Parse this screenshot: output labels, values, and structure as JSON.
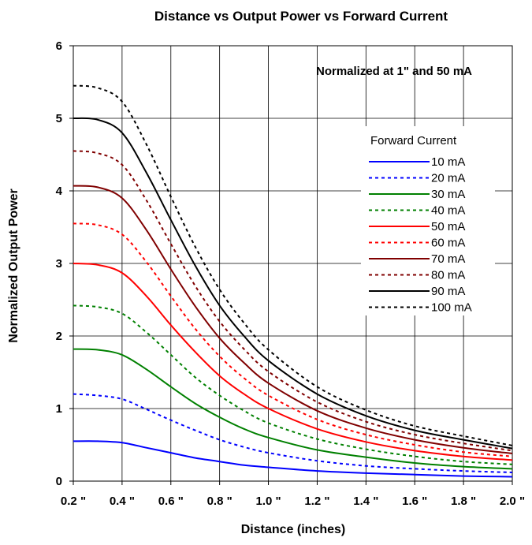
{
  "chart_data": {
    "type": "line",
    "title": "Distance vs Output Power vs Forward Current",
    "annotation": "Normalized at 1\" and 50 mA",
    "xlabel": "Distance (inches)",
    "ylabel": "Normalized Output Power",
    "xlim": [
      0.2,
      2.0
    ],
    "ylim": [
      0,
      6
    ],
    "grid": true,
    "x_ticks": [
      0.2,
      0.4,
      0.6,
      0.8,
      1.0,
      1.2,
      1.4,
      1.6,
      1.8,
      2.0
    ],
    "x_tick_labels": [
      "0.2 \"",
      "0.4 \"",
      "0.6 \"",
      "0.8 \"",
      "1.0 \"",
      "1.2 \"",
      "1.4 \"",
      "1.6 \"",
      "1.8 \"",
      "2.0 \""
    ],
    "y_ticks": [
      0,
      1,
      2,
      3,
      4,
      5,
      6
    ],
    "y_tick_labels": [
      "0",
      "1",
      "2",
      "3",
      "4",
      "5",
      "6"
    ],
    "legend_title": "Forward Current",
    "legend_position": "right",
    "x": [
      0.2,
      0.3,
      0.4,
      0.5,
      0.6,
      0.7,
      0.8,
      0.9,
      1.0,
      1.2,
      1.4,
      1.6,
      1.8,
      2.0
    ],
    "series": [
      {
        "name": "10 mA",
        "color": "#0000ff",
        "dash": "solid",
        "values": [
          0.55,
          0.55,
          0.53,
          0.46,
          0.39,
          0.32,
          0.27,
          0.22,
          0.19,
          0.14,
          0.11,
          0.09,
          0.07,
          0.06
        ]
      },
      {
        "name": "20 mA",
        "color": "#0000ff",
        "dash": "dashed",
        "values": [
          1.2,
          1.18,
          1.13,
          0.99,
          0.84,
          0.7,
          0.57,
          0.47,
          0.39,
          0.28,
          0.21,
          0.17,
          0.14,
          0.12
        ]
      },
      {
        "name": "30 mA",
        "color": "#008000",
        "dash": "solid",
        "values": [
          1.82,
          1.81,
          1.74,
          1.54,
          1.3,
          1.07,
          0.88,
          0.72,
          0.6,
          0.43,
          0.33,
          0.25,
          0.2,
          0.17
        ]
      },
      {
        "name": "40 mA",
        "color": "#008000",
        "dash": "dashed",
        "values": [
          2.42,
          2.4,
          2.31,
          2.05,
          1.74,
          1.43,
          1.18,
          0.97,
          0.8,
          0.58,
          0.44,
          0.34,
          0.27,
          0.23
        ]
      },
      {
        "name": "50 mA",
        "color": "#ff0000",
        "dash": "solid",
        "values": [
          3.0,
          2.98,
          2.87,
          2.55,
          2.15,
          1.78,
          1.45,
          1.2,
          1.0,
          0.72,
          0.54,
          0.42,
          0.34,
          0.29
        ]
      },
      {
        "name": "60 mA",
        "color": "#ff0000",
        "dash": "dashed",
        "values": [
          3.55,
          3.53,
          3.4,
          3.02,
          2.55,
          2.1,
          1.72,
          1.42,
          1.18,
          0.85,
          0.64,
          0.5,
          0.4,
          0.34
        ]
      },
      {
        "name": "70 mA",
        "color": "#800000",
        "dash": "solid",
        "values": [
          4.07,
          4.05,
          3.9,
          3.46,
          2.92,
          2.41,
          1.97,
          1.63,
          1.35,
          0.97,
          0.73,
          0.57,
          0.46,
          0.38
        ]
      },
      {
        "name": "80 mA",
        "color": "#800000",
        "dash": "dashed",
        "values": [
          4.55,
          4.52,
          4.36,
          3.87,
          3.27,
          2.69,
          2.2,
          1.82,
          1.51,
          1.09,
          0.82,
          0.64,
          0.52,
          0.42
        ]
      },
      {
        "name": "90 mA",
        "color": "#000000",
        "dash": "solid",
        "values": [
          5.0,
          4.98,
          4.8,
          4.25,
          3.6,
          2.97,
          2.42,
          2.0,
          1.66,
          1.2,
          0.9,
          0.7,
          0.57,
          0.45
        ]
      },
      {
        "name": "100 mA",
        "color": "#000000",
        "dash": "dashed",
        "values": [
          5.45,
          5.42,
          5.23,
          4.64,
          3.92,
          3.23,
          2.64,
          2.18,
          1.81,
          1.3,
          0.98,
          0.76,
          0.62,
          0.49
        ]
      }
    ]
  }
}
